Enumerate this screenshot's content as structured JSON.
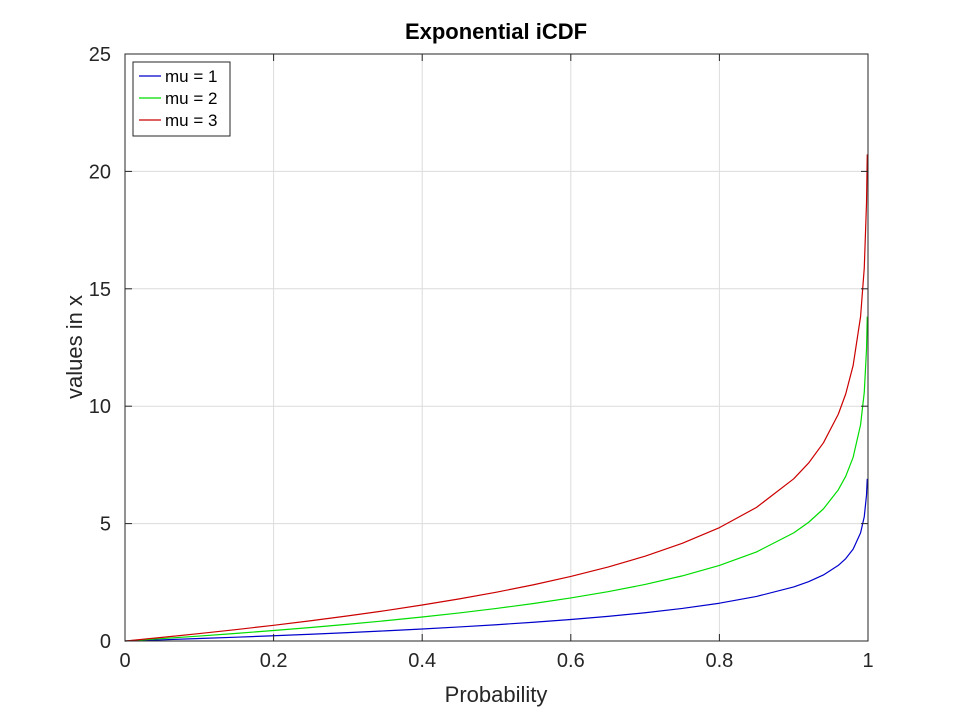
{
  "chart_data": {
    "type": "line",
    "title": "Exponential iCDF",
    "xlabel": "Probability",
    "ylabel": "values in x",
    "xlim": [
      0,
      1
    ],
    "ylim": [
      0,
      25
    ],
    "xticks": [
      0,
      0.2,
      0.4,
      0.6,
      0.8,
      1
    ],
    "xtick_labels": [
      "0",
      "0.2",
      "0.4",
      "0.6",
      "0.8",
      "1"
    ],
    "yticks": [
      0,
      5,
      10,
      15,
      20,
      25
    ],
    "ytick_labels": [
      "0",
      "5",
      "10",
      "15",
      "20",
      "25"
    ],
    "grid": true,
    "legend_position": "top-left",
    "x": [
      0,
      0.05,
      0.1,
      0.15,
      0.2,
      0.25,
      0.3,
      0.35,
      0.4,
      0.45,
      0.5,
      0.55,
      0.6,
      0.65,
      0.7,
      0.75,
      0.8,
      0.85,
      0.9,
      0.92,
      0.94,
      0.96,
      0.97,
      0.98,
      0.99,
      0.995,
      0.998,
      0.999
    ],
    "series": [
      {
        "name": "mu = 1",
        "color": "#0000cc",
        "values": [
          0,
          0.051,
          0.105,
          0.163,
          0.223,
          0.288,
          0.357,
          0.431,
          0.511,
          0.598,
          0.693,
          0.799,
          0.916,
          1.05,
          1.204,
          1.386,
          1.609,
          1.897,
          2.303,
          2.526,
          2.813,
          3.219,
          3.507,
          3.912,
          4.605,
          5.298,
          6.215,
          6.908
        ]
      },
      {
        "name": "mu = 2",
        "color": "#00dd00",
        "values": [
          0,
          0.103,
          0.211,
          0.325,
          0.446,
          0.575,
          0.713,
          0.862,
          1.022,
          1.196,
          1.386,
          1.597,
          1.833,
          2.1,
          2.408,
          2.773,
          3.219,
          3.794,
          4.605,
          5.052,
          5.627,
          6.438,
          7.013,
          7.824,
          9.21,
          10.597,
          12.429,
          13.816
        ]
      },
      {
        "name": "mu = 3",
        "color": "#cc0000",
        "values": [
          0,
          0.154,
          0.316,
          0.488,
          0.669,
          0.863,
          1.07,
          1.292,
          1.532,
          1.794,
          2.079,
          2.396,
          2.749,
          3.149,
          3.612,
          4.159,
          4.828,
          5.691,
          6.908,
          7.577,
          8.44,
          9.657,
          10.52,
          11.736,
          13.816,
          15.895,
          18.644,
          20.723
        ]
      }
    ]
  }
}
